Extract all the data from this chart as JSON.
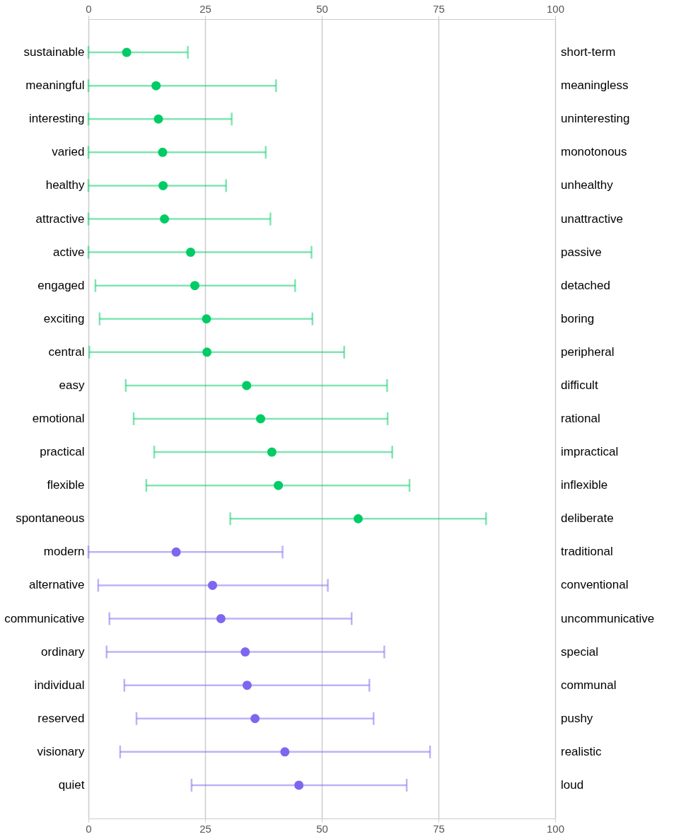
{
  "chart_data": {
    "type": "scatter",
    "orientation": "horizontal",
    "categories": [
      "sustainable",
      "meaningful",
      "interesting",
      "varied",
      "healthy",
      "attractive",
      "active",
      "engaged",
      "exciting",
      "central",
      "easy",
      "emotional",
      "practical",
      "flexible",
      "spontaneous",
      "modern",
      "alternative",
      "communicative",
      "ordinary",
      "individual",
      "reserved",
      "visionary",
      "quiet"
    ],
    "y2_categories": [
      "short-term",
      "meaningless",
      "uninteresting",
      "monotonous",
      "unhealthy",
      "unattractive",
      "passive",
      "detached",
      "boring",
      "peripheral",
      "difficult",
      "rational",
      "impractical",
      "inflexible",
      "deliberate",
      "traditional",
      "conventional",
      "uncommunicative",
      "special",
      "communal",
      "pushy",
      "realistic",
      "loud"
    ],
    "series": [
      {
        "color": "#00cc66",
        "values": [
          8.2,
          14.5,
          15.0,
          15.9,
          16.0,
          16.3,
          21.9,
          22.8,
          25.3,
          25.4,
          33.9,
          36.9,
          39.3,
          40.7,
          57.8,
          null,
          null,
          null,
          null,
          null,
          null,
          null,
          null
        ],
        "errors": [
          [
            0,
            21.3
          ],
          [
            0,
            40.2
          ],
          [
            0,
            30.7
          ],
          [
            0,
            38.0
          ],
          [
            0,
            29.5
          ],
          [
            0,
            39.0
          ],
          [
            0,
            47.8
          ],
          [
            1.5,
            44.3
          ],
          [
            2.4,
            48.0
          ],
          [
            0.2,
            54.8
          ],
          [
            8.0,
            64.0
          ],
          [
            9.7,
            64.1
          ],
          [
            14.1,
            65.1
          ],
          [
            12.4,
            68.8
          ],
          [
            30.4,
            85.2
          ],
          null,
          null,
          null,
          null,
          null,
          null,
          null,
          null
        ]
      },
      {
        "color": "#7b68ee",
        "values": [
          null,
          null,
          null,
          null,
          null,
          null,
          null,
          null,
          null,
          null,
          null,
          null,
          null,
          null,
          null,
          18.8,
          26.6,
          28.4,
          33.6,
          34.0,
          35.7,
          42.1,
          45.1
        ],
        "errors": [
          null,
          null,
          null,
          null,
          null,
          null,
          null,
          null,
          null,
          null,
          null,
          null,
          null,
          null,
          null,
          [
            0,
            41.6
          ],
          [
            2.1,
            51.3
          ],
          [
            4.5,
            56.4
          ],
          [
            3.9,
            63.4
          ],
          [
            7.7,
            60.2
          ],
          [
            10.3,
            61.1
          ],
          [
            6.8,
            73.2
          ],
          [
            22.1,
            68.2
          ]
        ]
      }
    ],
    "xlim": [
      0,
      100
    ],
    "xticks": [
      0,
      25,
      50,
      75,
      100
    ],
    "x2lim": [
      0,
      100
    ],
    "x2ticks": [
      0,
      25,
      50,
      75,
      100
    ],
    "grid": "x",
    "legend": false,
    "marker": "circle"
  }
}
